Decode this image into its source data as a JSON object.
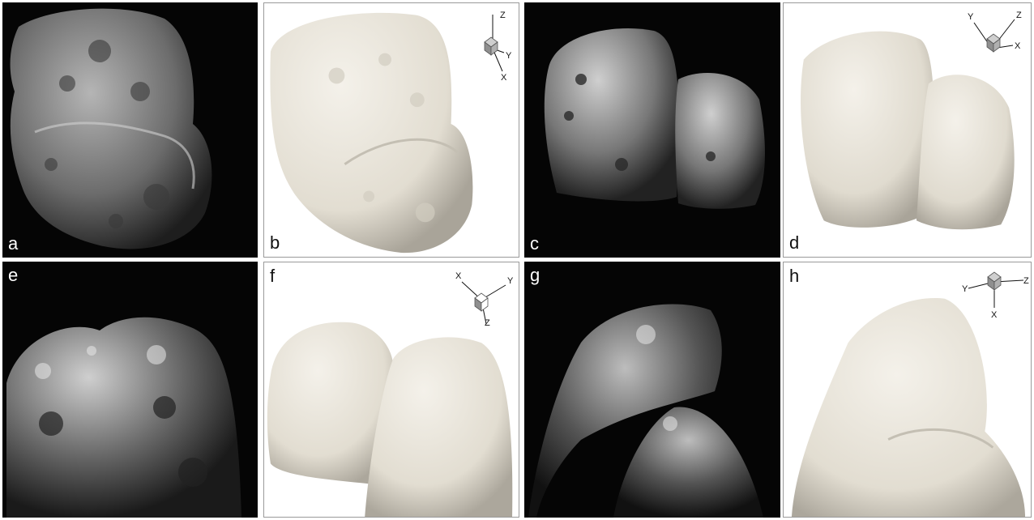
{
  "panels": [
    {
      "id": "a",
      "label": "a",
      "kind": "photo"
    },
    {
      "id": "b",
      "label": "b",
      "kind": "model",
      "axes": {
        "labels": [
          "Z",
          "Y",
          "X"
        ]
      }
    },
    {
      "id": "c",
      "label": "c",
      "kind": "photo"
    },
    {
      "id": "d",
      "label": "d",
      "kind": "model",
      "axes": {
        "labels": [
          "Y",
          "Z",
          "X"
        ]
      }
    },
    {
      "id": "e",
      "label": "e",
      "kind": "photo"
    },
    {
      "id": "f",
      "label": "f",
      "kind": "model",
      "axes": {
        "labels": [
          "X",
          "Y",
          "Z"
        ]
      }
    },
    {
      "id": "g",
      "label": "g",
      "kind": "photo"
    },
    {
      "id": "h",
      "label": "h",
      "kind": "model",
      "axes": {
        "labels": [
          "Y",
          "Z",
          "X"
        ]
      }
    }
  ],
  "colors": {
    "photo_background": "#050505",
    "photo_surface": "#8a8a8a",
    "model_surface": "#e8e4da",
    "model_shadow": "#b8b3a8"
  }
}
